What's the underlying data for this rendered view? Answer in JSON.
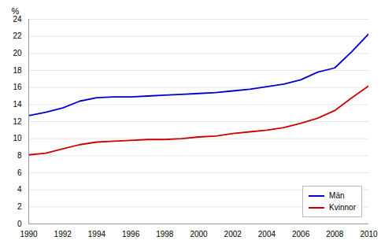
{
  "chart_data": {
    "type": "line",
    "ylabel": "%",
    "x": [
      1990,
      1991,
      1992,
      1993,
      1994,
      1995,
      1996,
      1997,
      1998,
      1999,
      2000,
      2001,
      2002,
      2003,
      2004,
      2005,
      2006,
      2007,
      2008,
      2009,
      2010
    ],
    "series": [
      {
        "name": "Män",
        "color": "#0000cc",
        "values": [
          12.7,
          13.1,
          13.6,
          14.4,
          14.8,
          14.9,
          14.9,
          15.0,
          15.1,
          15.2,
          15.3,
          15.4,
          15.6,
          15.8,
          16.1,
          16.4,
          16.9,
          17.8,
          18.3,
          20.2,
          22.3
        ]
      },
      {
        "name": "Kvinnor",
        "color": "#cc0000",
        "values": [
          8.1,
          8.3,
          8.8,
          9.3,
          9.6,
          9.7,
          9.8,
          9.9,
          9.9,
          10.0,
          10.2,
          10.3,
          10.6,
          10.8,
          11.0,
          11.3,
          11.8,
          12.4,
          13.3,
          14.8,
          16.2
        ]
      }
    ],
    "xlim": [
      1990,
      2010
    ],
    "ylim": [
      0,
      24
    ],
    "xticks": [
      1990,
      1992,
      1994,
      1996,
      1998,
      2000,
      2002,
      2004,
      2006,
      2008,
      2010
    ],
    "yticks": [
      0,
      2,
      4,
      6,
      8,
      10,
      12,
      14,
      16,
      18,
      20,
      22,
      24
    ],
    "grid": "y",
    "legend": "lower right"
  }
}
